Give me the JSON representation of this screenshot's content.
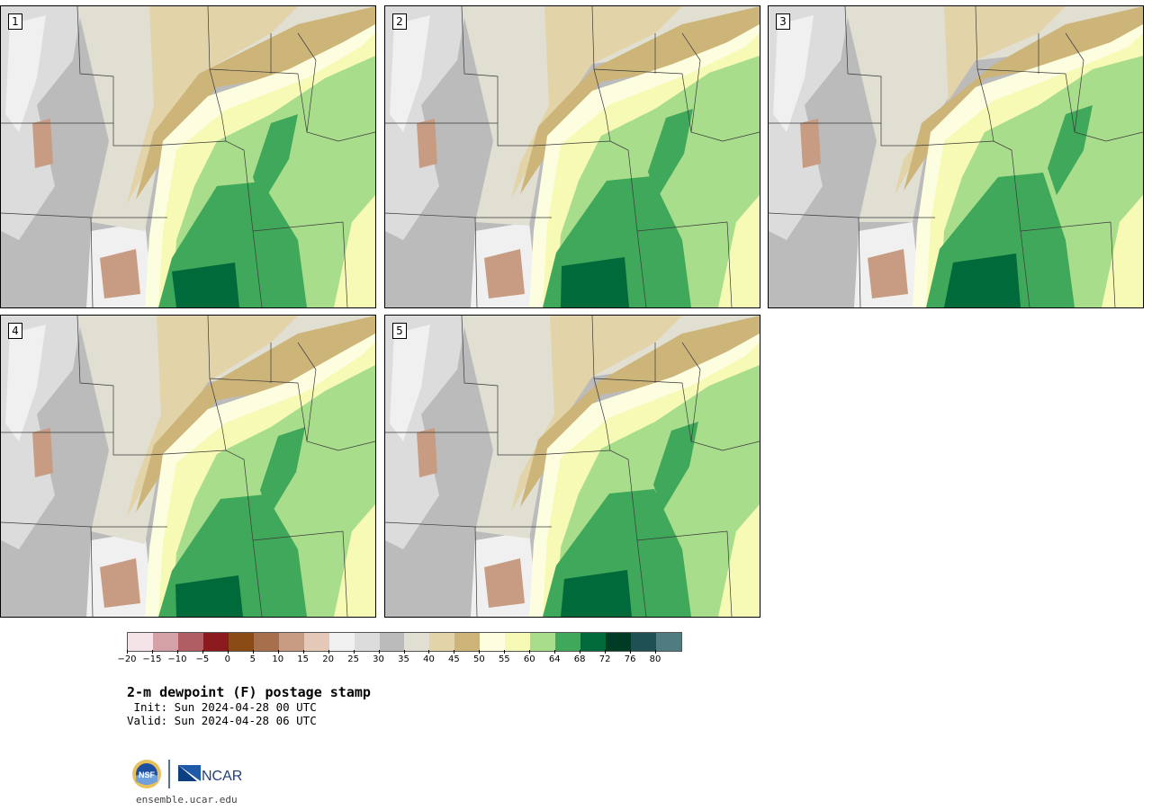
{
  "panels": [
    {
      "label": "1",
      "variant": 0
    },
    {
      "label": "2",
      "variant": 1
    },
    {
      "label": "3",
      "variant": 2
    },
    {
      "label": "4",
      "variant": 3
    },
    {
      "label": "5",
      "variant": 4
    }
  ],
  "colorbar": {
    "colors": [
      "#f4e4e7",
      "#d3a1a6",
      "#b05e63",
      "#8a1a1e",
      "#8a4a14",
      "#a86f4d",
      "#c79c82",
      "#e4c9b8",
      "#f0f0f0",
      "#dcdcdc",
      "#bbbbbb",
      "#e0dfd2",
      "#e3d3a8",
      "#cdb57a",
      "#fdfde0",
      "#f6fab4",
      "#a8dd8c",
      "#40a85a",
      "#006a3a",
      "#003c25",
      "#1e5054",
      "#4f7c80"
    ],
    "tick_labels": [
      "−20",
      "−15",
      "−10",
      "−5",
      "0",
      "5",
      "10",
      "15",
      "20",
      "25",
      "30",
      "35",
      "40",
      "45",
      "50",
      "55",
      "60",
      "64",
      "68",
      "72",
      "76",
      "80"
    ]
  },
  "title": "2-m dewpoint (F) postage stamp",
  "init": " Init: Sun 2024-04-28 00 UTC",
  "valid": "Valid: Sun 2024-04-28 06 UTC",
  "logos": {
    "left": "NSF",
    "right": "NCAR"
  },
  "url": "ensemble.ucar.edu"
}
